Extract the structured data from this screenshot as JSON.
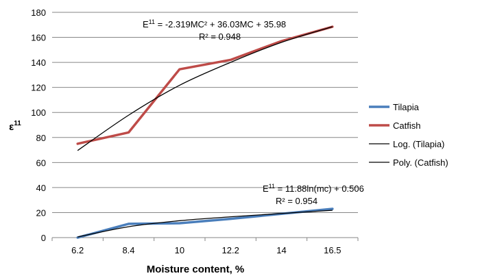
{
  "chart_data": {
    "type": "line",
    "categories": [
      "6.2",
      "8.4",
      "10",
      "12.2",
      "14",
      "16.5"
    ],
    "ylabel": "ε",
    "ylabel_sup": "11",
    "xlabel": "Moisture content, %",
    "ylim": [
      0,
      180
    ],
    "y_ticks": [
      0,
      20,
      40,
      60,
      80,
      100,
      120,
      140,
      160,
      180
    ],
    "grid": "horizontal",
    "legend_position": "right",
    "series": [
      {
        "name": "Tilapia",
        "color": "#4a7ebb",
        "values": [
          0,
          11,
          11.5,
          15,
          19,
          23
        ]
      },
      {
        "name": "Catfish",
        "color": "#be4b48",
        "values": [
          75,
          84,
          134.5,
          142,
          157,
          168.5
        ]
      }
    ],
    "trendlines": [
      {
        "name": "Log. (Tilapia)",
        "color": "#000000",
        "values": [
          0.5,
          8.7,
          13.5,
          16.6,
          19.3,
          21.8
        ]
      },
      {
        "name": "Poly. (Catfish)",
        "color": "#000000",
        "values": [
          69.6,
          97.8,
          121.7,
          140,
          156,
          168.5
        ]
      }
    ],
    "annotations": {
      "catfish_equation_prefix": "E",
      "catfish_equation_sup": "11",
      "catfish_equation_rest": " = -2.319MC² + 36.03MC + 35.98",
      "catfish_r2": "R² = 0.948",
      "tilapia_equation_prefix": "E",
      "tilapia_equation_sup": "11",
      "tilapia_equation_rest": " = 11.88ln(mc) + 0.506",
      "tilapia_r2": "R² = 0.954"
    }
  }
}
